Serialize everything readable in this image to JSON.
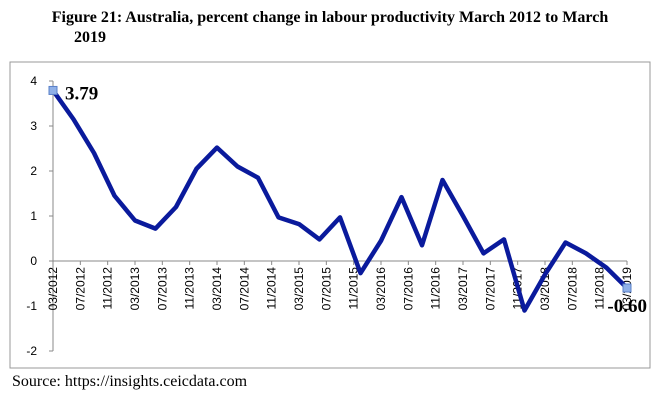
{
  "chart_data": {
    "type": "line",
    "title": "Figure 21: Australia, percent change in labour productivity March 2012 to March 2019",
    "source": "Source: https://insights.ceicdata.com",
    "x": [
      0,
      3,
      6,
      9,
      12,
      15,
      18,
      21,
      24,
      27,
      30,
      33,
      36,
      39,
      42,
      45,
      48,
      51,
      54,
      57,
      60,
      63,
      66,
      69,
      72,
      75,
      78,
      81,
      84
    ],
    "series": [
      {
        "name": "Labour productivity",
        "color": "#0a1a9c",
        "values": [
          3.79,
          3.15,
          2.4,
          1.45,
          0.9,
          0.72,
          1.2,
          2.05,
          2.52,
          2.1,
          1.85,
          0.97,
          0.82,
          0.48,
          0.97,
          -0.27,
          0.45,
          1.42,
          0.35,
          1.8,
          1.0,
          0.17,
          0.48,
          -1.1,
          -0.3,
          0.41,
          0.17,
          -0.15,
          -0.6
        ],
        "value_labels": [
          "3.79",
          null,
          null,
          null,
          null,
          null,
          null,
          null,
          null,
          null,
          null,
          null,
          null,
          null,
          null,
          null,
          null,
          null,
          null,
          null,
          null,
          null,
          null,
          null,
          null,
          null,
          null,
          null,
          "-0.60"
        ]
      }
    ],
    "xlim": [
      0,
      84
    ],
    "xticks": [
      {
        "value": 0,
        "label": "03/2012"
      },
      {
        "value": 4,
        "label": "07/2012"
      },
      {
        "value": 8,
        "label": "11/2012"
      },
      {
        "value": 12,
        "label": "03/2013"
      },
      {
        "value": 16,
        "label": "07/2013"
      },
      {
        "value": 20,
        "label": "11/2013"
      },
      {
        "value": 24,
        "label": "03/2014"
      },
      {
        "value": 28,
        "label": "07/2014"
      },
      {
        "value": 32,
        "label": "11/2014"
      },
      {
        "value": 36,
        "label": "03/2015"
      },
      {
        "value": 40,
        "label": "07/2015"
      },
      {
        "value": 44,
        "label": "11/2015"
      },
      {
        "value": 48,
        "label": "03/2016"
      },
      {
        "value": 52,
        "label": "07/2016"
      },
      {
        "value": 56,
        "label": "11/2016"
      },
      {
        "value": 60,
        "label": "03/2017"
      },
      {
        "value": 64,
        "label": "07/2017"
      },
      {
        "value": 68,
        "label": "11/2017"
      },
      {
        "value": 72,
        "label": "03/2018"
      },
      {
        "value": 76,
        "label": "07/2018"
      },
      {
        "value": 80,
        "label": "11/2018"
      },
      {
        "value": 84,
        "label": "03/2019"
      }
    ],
    "ylim": [
      -2,
      4
    ],
    "yticks": [
      -2,
      -1,
      0,
      1,
      2,
      3,
      4
    ]
  }
}
